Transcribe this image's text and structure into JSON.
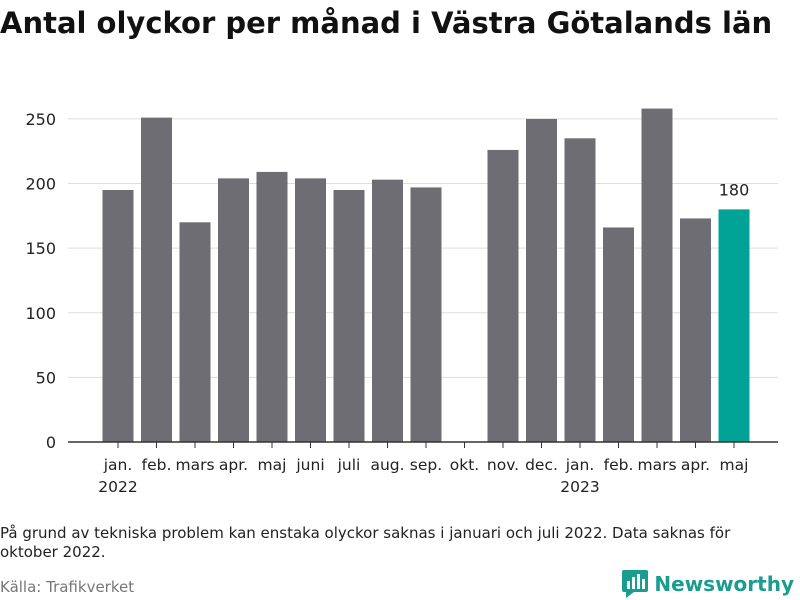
{
  "title": "Antal olyckor per månad i Västra Götalands län",
  "footnote": "På grund av tekniska problem kan enstaka olyckor saknas i januari och juli 2022. Data saknas för oktober 2022.",
  "source": "Källa: Trafikverket",
  "brand": {
    "name": "Newsworthy",
    "color": "#1a9c8f"
  },
  "chart_data": {
    "type": "bar",
    "categories": [
      "jan.",
      "feb.",
      "mars",
      "apr.",
      "maj",
      "juni",
      "juli",
      "aug.",
      "sep.",
      "okt.",
      "nov.",
      "dec.",
      "jan.",
      "feb.",
      "mars",
      "apr.",
      "maj"
    ],
    "year_labels": [
      {
        "index": 0,
        "label": "2022"
      },
      {
        "index": 12,
        "label": "2023"
      }
    ],
    "values": [
      195,
      251,
      170,
      204,
      209,
      204,
      195,
      203,
      197,
      null,
      226,
      250,
      235,
      166,
      258,
      173,
      180
    ],
    "highlight_index": 16,
    "highlight_label": "180",
    "ylim": [
      0,
      260
    ],
    "yticks": [
      0,
      50,
      100,
      150,
      200,
      250
    ],
    "grid": true,
    "colors": {
      "bar": "#6d6d73",
      "highlight": "#00a396",
      "grid": "#dddddd",
      "axis": "#333333"
    }
  }
}
